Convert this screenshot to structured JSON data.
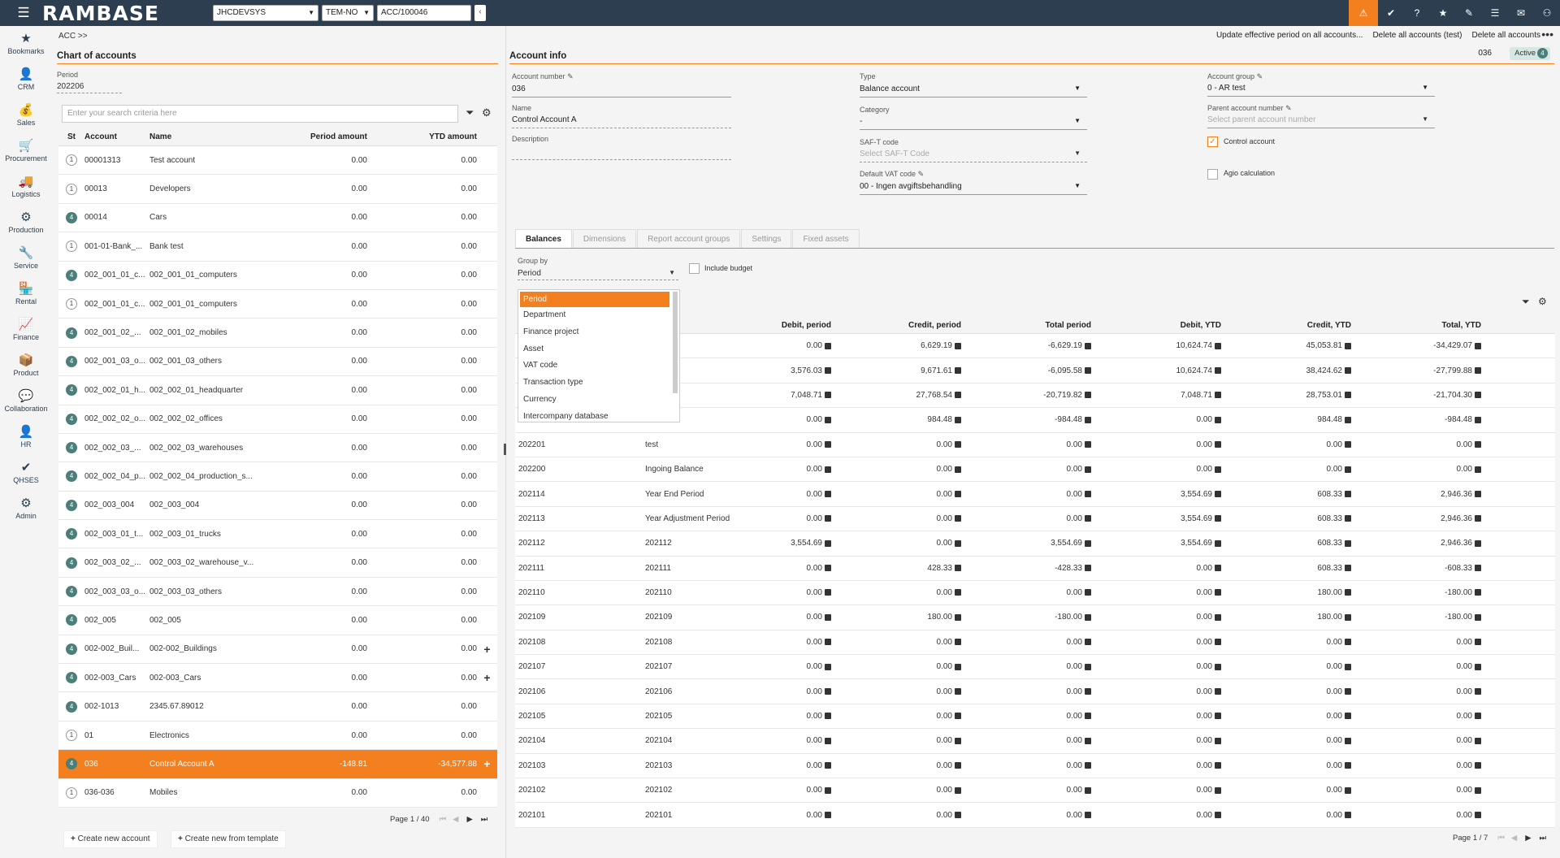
{
  "app": {
    "logo": "RAMBASE",
    "db": "JHCDEVSYS",
    "company": "TEM-NO",
    "target": "ACC/100046"
  },
  "sidebar": [
    {
      "label": "Bookmarks",
      "icon": "★"
    },
    {
      "label": "CRM",
      "icon": "👤"
    },
    {
      "label": "Sales",
      "icon": "💰"
    },
    {
      "label": "Procurement",
      "icon": "🛒"
    },
    {
      "label": "Logistics",
      "icon": "🚚"
    },
    {
      "label": "Production",
      "icon": "⚙"
    },
    {
      "label": "Service",
      "icon": "🔧"
    },
    {
      "label": "Rental",
      "icon": "🏪"
    },
    {
      "label": "Finance",
      "icon": "📈"
    },
    {
      "label": "Product",
      "icon": "📦"
    },
    {
      "label": "Collaboration",
      "icon": "💬"
    },
    {
      "label": "HR",
      "icon": "👤"
    },
    {
      "label": "QHSES",
      "icon": "✔"
    },
    {
      "label": "Admin",
      "icon": "⚙"
    }
  ],
  "breadcrumb": "ACC >>",
  "left": {
    "title": "Chart of accounts",
    "period_label": "Period",
    "period_value": "202206",
    "search_placeholder": "Enter your search criteria here",
    "columns": [
      "St",
      "Account",
      "Name",
      "Period amount",
      "YTD amount"
    ],
    "rows": [
      {
        "st": "1",
        "account": "00001313",
        "name": "Test account",
        "period": "0.00",
        "ytd": "0.00"
      },
      {
        "st": "1",
        "account": "00013",
        "name": "Developers",
        "period": "0.00",
        "ytd": "0.00"
      },
      {
        "st": "4",
        "account": "00014",
        "name": "Cars",
        "period": "0.00",
        "ytd": "0.00"
      },
      {
        "st": "1",
        "account": "001-01-Bank_...",
        "name": "Bank test",
        "period": "0.00",
        "ytd": "0.00"
      },
      {
        "st": "4",
        "account": "002_001_01_c...",
        "name": "002_001_01_computers",
        "period": "0.00",
        "ytd": "0.00"
      },
      {
        "st": "1",
        "account": "002_001_01_c...",
        "name": "002_001_01_computers",
        "period": "0.00",
        "ytd": "0.00"
      },
      {
        "st": "4",
        "account": "002_001_02_...",
        "name": "002_001_02_mobiles",
        "period": "0.00",
        "ytd": "0.00"
      },
      {
        "st": "4",
        "account": "002_001_03_o...",
        "name": "002_001_03_others",
        "period": "0.00",
        "ytd": "0.00"
      },
      {
        "st": "4",
        "account": "002_002_01_h...",
        "name": "002_002_01_headquarter",
        "period": "0.00",
        "ytd": "0.00"
      },
      {
        "st": "4",
        "account": "002_002_02_o...",
        "name": "002_002_02_offices",
        "period": "0.00",
        "ytd": "0.00"
      },
      {
        "st": "4",
        "account": "002_002_03_...",
        "name": "002_002_03_warehouses",
        "period": "0.00",
        "ytd": "0.00"
      },
      {
        "st": "4",
        "account": "002_002_04_p...",
        "name": "002_002_04_production_s...",
        "period": "0.00",
        "ytd": "0.00"
      },
      {
        "st": "4",
        "account": "002_003_004",
        "name": "002_003_004",
        "period": "0.00",
        "ytd": "0.00"
      },
      {
        "st": "4",
        "account": "002_003_01_t...",
        "name": "002_003_01_trucks",
        "period": "0.00",
        "ytd": "0.00"
      },
      {
        "st": "4",
        "account": "002_003_02_...",
        "name": "002_003_02_warehouse_v...",
        "period": "0.00",
        "ytd": "0.00"
      },
      {
        "st": "4",
        "account": "002_003_03_o...",
        "name": "002_003_03_others",
        "period": "0.00",
        "ytd": "0.00"
      },
      {
        "st": "4",
        "account": "002_005",
        "name": "002_005",
        "period": "0.00",
        "ytd": "0.00"
      },
      {
        "st": "4",
        "account": "002-002_Buil...",
        "name": "002-002_Buildings",
        "period": "0.00",
        "ytd": "0.00",
        "plus": "+"
      },
      {
        "st": "4",
        "account": "002-003_Cars",
        "name": "002-003_Cars",
        "period": "0.00",
        "ytd": "0.00",
        "plus": "+"
      },
      {
        "st": "4",
        "account": "002-1013",
        "name": "2345.67.89012",
        "period": "0.00",
        "ytd": "0.00"
      },
      {
        "st": "1",
        "account": "01",
        "name": "Electronics",
        "period": "0.00",
        "ytd": "0.00"
      },
      {
        "st": "4",
        "account": "036",
        "name": "Control Account A",
        "period": "-148.81",
        "ytd": "-34,577.88",
        "plus": "+",
        "selected": true
      },
      {
        "st": "1",
        "account": "036-036",
        "name": "Mobiles",
        "period": "0.00",
        "ytd": "0.00"
      }
    ],
    "pager": "Page 1 / 40",
    "create_new": "Create new account",
    "create_template": "Create new from template"
  },
  "right": {
    "actions": [
      "Update effective period on all accounts...",
      "Delete all accounts (test)",
      "Delete all accounts"
    ],
    "title": "Account info",
    "account_no_display": "036",
    "status": "Active",
    "status_count": "4",
    "fields": {
      "account_number_label": "Account number",
      "account_number": "036",
      "name_label": "Name",
      "name": "Control Account A",
      "description_label": "Description",
      "description": "",
      "type_label": "Type",
      "type": "Balance account",
      "category_label": "Category",
      "category": "-",
      "saft_label": "SAF-T code",
      "saft_placeholder": "Select SAF-T Code",
      "vat_label": "Default VAT code",
      "vat": "00 - Ingen avgiftsbehandling",
      "group_label": "Account group",
      "group": "0 - AR test",
      "parent_label": "Parent account number",
      "parent_placeholder": "Select parent account number",
      "control_label": "Control account",
      "agio_label": "Agio calculation"
    },
    "tabs": [
      "Balances",
      "Dimensions",
      "Report account groups",
      "Settings",
      "Fixed assets"
    ],
    "group_by_label": "Group by",
    "group_by": "Period",
    "include_budget": "Include budget",
    "dropdown": [
      "Period",
      "Department",
      "Finance project",
      "Asset",
      "VAT code",
      "Transaction type",
      "Currency",
      "Intercompany database"
    ],
    "columns": [
      "on",
      "Debit, period",
      "Credit, period",
      "Total period",
      "Debit, YTD",
      "Credit, YTD",
      "Total, YTD"
    ],
    "rows": [
      {
        "period": "",
        "desc": "",
        "dp": "0.00",
        "cp": "6,629.19",
        "tp": "-6,629.19",
        "dy": "10,624.74",
        "cy": "45,053.81",
        "ty": "-34,429.07"
      },
      {
        "period": "",
        "desc": "",
        "dp": "3,576.03",
        "cp": "9,671.61",
        "tp": "-6,095.58",
        "dy": "10,624.74",
        "cy": "38,424.62",
        "ty": "-27,799.88"
      },
      {
        "period": "",
        "desc": "",
        "dp": "7,048.71",
        "cp": "27,768.54",
        "tp": "-20,719.82",
        "dy": "7,048.71",
        "cy": "28,753.01",
        "ty": "-21,704.30"
      },
      {
        "period": "",
        "desc": "",
        "dp": "0.00",
        "cp": "984.48",
        "tp": "-984.48",
        "dy": "0.00",
        "cy": "984.48",
        "ty": "-984.48"
      },
      {
        "period": "202201",
        "desc": "test",
        "dp": "0.00",
        "cp": "0.00",
        "tp": "0.00",
        "dy": "0.00",
        "cy": "0.00",
        "ty": "0.00"
      },
      {
        "period": "202200",
        "desc": "Ingoing Balance",
        "dp": "0.00",
        "cp": "0.00",
        "tp": "0.00",
        "dy": "0.00",
        "cy": "0.00",
        "ty": "0.00"
      },
      {
        "period": "202114",
        "desc": "Year End Period",
        "dp": "0.00",
        "cp": "0.00",
        "tp": "0.00",
        "dy": "3,554.69",
        "cy": "608.33",
        "ty": "2,946.36"
      },
      {
        "period": "202113",
        "desc": "Year Adjustment Period",
        "dp": "0.00",
        "cp": "0.00",
        "tp": "0.00",
        "dy": "3,554.69",
        "cy": "608.33",
        "ty": "2,946.36"
      },
      {
        "period": "202112",
        "desc": "202112",
        "dp": "3,554.69",
        "cp": "0.00",
        "tp": "3,554.69",
        "dy": "3,554.69",
        "cy": "608.33",
        "ty": "2,946.36"
      },
      {
        "period": "202111",
        "desc": "202111",
        "dp": "0.00",
        "cp": "428.33",
        "tp": "-428.33",
        "dy": "0.00",
        "cy": "608.33",
        "ty": "-608.33"
      },
      {
        "period": "202110",
        "desc": "202110",
        "dp": "0.00",
        "cp": "0.00",
        "tp": "0.00",
        "dy": "0.00",
        "cy": "180.00",
        "ty": "-180.00"
      },
      {
        "period": "202109",
        "desc": "202109",
        "dp": "0.00",
        "cp": "180.00",
        "tp": "-180.00",
        "dy": "0.00",
        "cy": "180.00",
        "ty": "-180.00"
      },
      {
        "period": "202108",
        "desc": "202108",
        "dp": "0.00",
        "cp": "0.00",
        "tp": "0.00",
        "dy": "0.00",
        "cy": "0.00",
        "ty": "0.00"
      },
      {
        "period": "202107",
        "desc": "202107",
        "dp": "0.00",
        "cp": "0.00",
        "tp": "0.00",
        "dy": "0.00",
        "cy": "0.00",
        "ty": "0.00"
      },
      {
        "period": "202106",
        "desc": "202106",
        "dp": "0.00",
        "cp": "0.00",
        "tp": "0.00",
        "dy": "0.00",
        "cy": "0.00",
        "ty": "0.00"
      },
      {
        "period": "202105",
        "desc": "202105",
        "dp": "0.00",
        "cp": "0.00",
        "tp": "0.00",
        "dy": "0.00",
        "cy": "0.00",
        "ty": "0.00"
      },
      {
        "period": "202104",
        "desc": "202104",
        "dp": "0.00",
        "cp": "0.00",
        "tp": "0.00",
        "dy": "0.00",
        "cy": "0.00",
        "ty": "0.00"
      },
      {
        "period": "202103",
        "desc": "202103",
        "dp": "0.00",
        "cp": "0.00",
        "tp": "0.00",
        "dy": "0.00",
        "cy": "0.00",
        "ty": "0.00"
      },
      {
        "period": "202102",
        "desc": "202102",
        "dp": "0.00",
        "cp": "0.00",
        "tp": "0.00",
        "dy": "0.00",
        "cy": "0.00",
        "ty": "0.00"
      },
      {
        "period": "202101",
        "desc": "202101",
        "dp": "0.00",
        "cp": "0.00",
        "tp": "0.00",
        "dy": "0.00",
        "cy": "0.00",
        "ty": "0.00"
      }
    ],
    "pager": "Page 1 / 7"
  }
}
